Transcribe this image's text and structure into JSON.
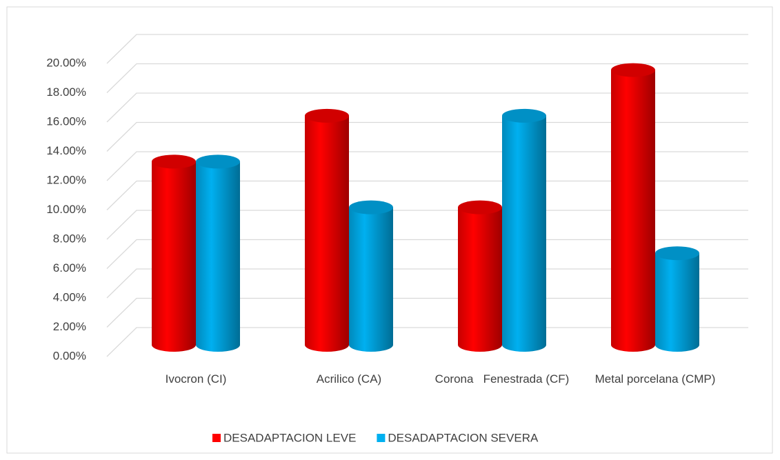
{
  "chart_data": {
    "type": "bar3d",
    "categories": [
      "Ivocron (CI)",
      "Acrilico (CA)",
      "Corona   Fenestrada (CF)",
      "Metal porcelana (CMP)"
    ],
    "series": [
      {
        "name": "DESADAPTACION LEVE",
        "color": "#ff0000",
        "values": [
          12.5,
          15.63,
          9.38,
          18.75
        ]
      },
      {
        "name": "DESADAPTACION SEVERA",
        "color": "#00b0f0",
        "values": [
          12.5,
          9.38,
          15.63,
          6.25
        ]
      }
    ],
    "ylim": [
      0,
      20
    ],
    "yticks": [
      {
        "value": 0,
        "label": "0.00%"
      },
      {
        "value": 2,
        "label": "2.00%"
      },
      {
        "value": 4,
        "label": "4.00%"
      },
      {
        "value": 6,
        "label": "6.00%"
      },
      {
        "value": 8,
        "label": "8.00%"
      },
      {
        "value": 10,
        "label": "10.00%"
      },
      {
        "value": 12,
        "label": "12.00%"
      },
      {
        "value": 14,
        "label": "14.00%"
      },
      {
        "value": 16,
        "label": "16.00%"
      },
      {
        "value": 18,
        "label": "18.00%"
      },
      {
        "value": 20,
        "label": "20.00%"
      }
    ],
    "grid": true,
    "legend": "bottom"
  }
}
